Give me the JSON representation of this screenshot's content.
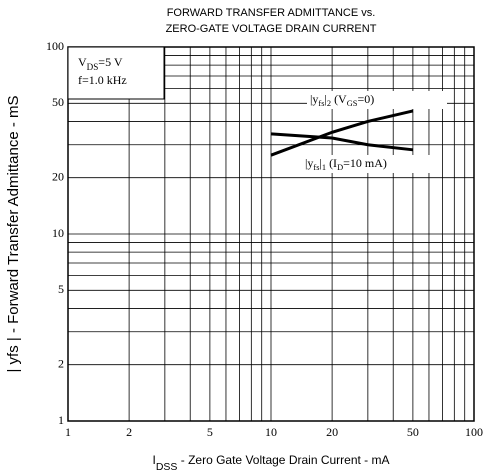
{
  "chart_data": {
    "type": "line",
    "title": [
      "FORWARD TRANSFER ADMITTANCE vs.",
      "ZERO-GATE VOLTAGE DRAIN CURRENT"
    ],
    "x_label_parts": [
      {
        "text": "I"
      },
      {
        "text": "DSS",
        "sub": true
      },
      {
        "text": " - Zero Gate Voltage Drain Current -  mA"
      }
    ],
    "y_label": "| yfs | - Forward Transfer Admittance - mS",
    "log_x": true,
    "log_y": true,
    "xlim": [
      1,
      100
    ],
    "ylim": [
      1,
      100
    ],
    "xticks": [
      1,
      2,
      5,
      10,
      20,
      50,
      100
    ],
    "yticks": [
      1,
      2,
      5,
      10,
      20,
      50,
      100
    ],
    "xgrid": [
      1,
      2,
      3,
      4,
      5,
      6,
      7,
      8,
      9,
      10,
      20,
      30,
      40,
      50,
      60,
      70,
      80,
      90,
      100
    ],
    "ygrid": [
      1,
      2,
      3,
      4,
      5,
      6,
      7,
      8,
      9,
      10,
      20,
      30,
      40,
      50,
      60,
      70,
      80,
      90,
      100
    ],
    "conditions": [
      [
        {
          "text": "V"
        },
        {
          "text": "DS",
          "sub": true
        },
        {
          "text": "=5  V"
        }
      ],
      [
        {
          "text": "f=1.0  kHz"
        }
      ]
    ],
    "series": [
      {
        "label_parts": [
          {
            "text": "|y"
          },
          {
            "text": "fs",
            "sub": true
          },
          {
            "text": "|"
          },
          {
            "text": "2",
            "sub": true
          },
          {
            "text": " (V"
          },
          {
            "text": "GS",
            "sub": true
          },
          {
            "text": "=0)"
          }
        ],
        "color": "#000000",
        "x": [
          10,
          20,
          30,
          50
        ],
        "values": [
          26.4,
          35,
          40,
          45.5
        ]
      },
      {
        "label_parts": [
          {
            "text": "|y"
          },
          {
            "text": "fs",
            "sub": true
          },
          {
            "text": "|"
          },
          {
            "text": "1",
            "sub": true
          },
          {
            "text": " (I"
          },
          {
            "text": "D",
            "sub": true
          },
          {
            "text": "=10  mA)"
          }
        ],
        "color": "#000000",
        "x": [
          10,
          20,
          30,
          50
        ],
        "values": [
          34.3,
          32.6,
          30,
          28.2
        ]
      }
    ]
  }
}
